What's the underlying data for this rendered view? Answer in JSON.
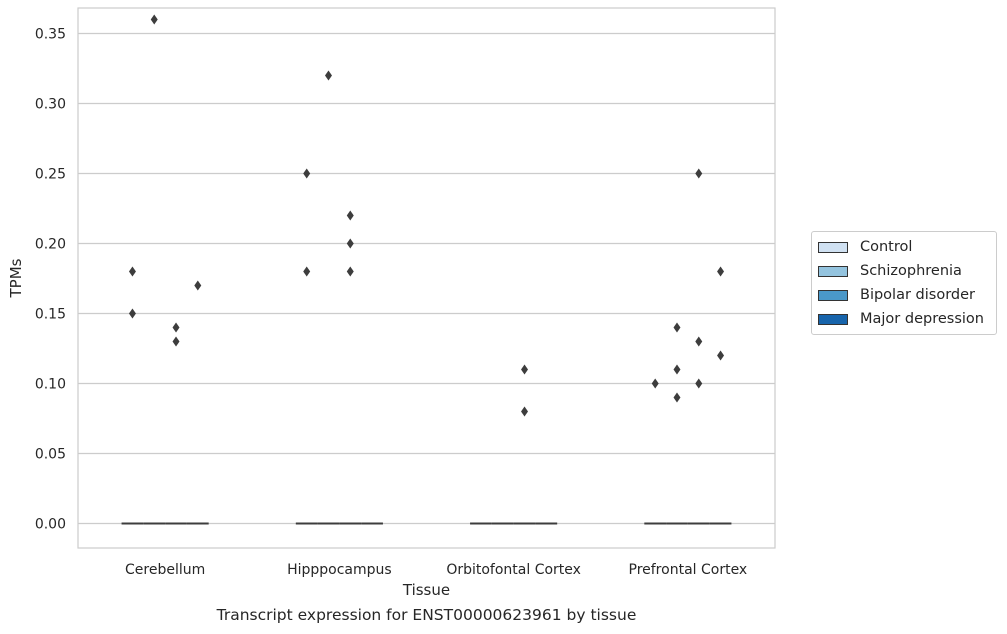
{
  "chart_data": {
    "type": "box",
    "title": "Transcript expression for ENST00000623961 by tissue",
    "xlabel": "Tissue",
    "ylabel": "TPMs",
    "categories": [
      "Cerebellum",
      "Hipppocampus",
      "Orbitofontal Cortex",
      "Prefrontal Cortex"
    ],
    "ylim": [
      -0.018,
      0.378
    ],
    "yticks": [
      "0.00",
      "0.05",
      "0.10",
      "0.15",
      "0.20",
      "0.25",
      "0.30",
      "0.35"
    ],
    "ytick_values": [
      0,
      0.05,
      0.1,
      0.15,
      0.2,
      0.25,
      0.3,
      0.35
    ],
    "grid": true,
    "legend_position": "right",
    "series": [
      {
        "name": "Control",
        "color": "#d0e1f2",
        "median": [
          0,
          0,
          0,
          0
        ],
        "outliers": [
          [
            0.15,
            0.18
          ],
          [
            0.18,
            0.25
          ],
          [],
          [
            0.1
          ]
        ]
      },
      {
        "name": "Schizophrenia",
        "color": "#94c4df",
        "median": [
          0,
          0,
          0,
          0
        ],
        "outliers": [
          [
            0.36
          ],
          [
            0.32
          ],
          [],
          [
            0.09,
            0.11,
            0.14
          ]
        ]
      },
      {
        "name": "Bipolar disorder",
        "color": "#4a98c9",
        "median": [
          0,
          0,
          0,
          0
        ],
        "outliers": [
          [
            0.14,
            0.13
          ],
          [
            0.18,
            0.2,
            0.22
          ],
          [
            0.08,
            0.11
          ],
          [
            0.1,
            0.13,
            0.25
          ]
        ]
      },
      {
        "name": "Major depression",
        "color": "#1764ab",
        "median": [
          0,
          0,
          0,
          0
        ],
        "outliers": [
          [
            0.17
          ],
          [],
          [],
          [
            0.12,
            0.18
          ]
        ]
      }
    ]
  }
}
